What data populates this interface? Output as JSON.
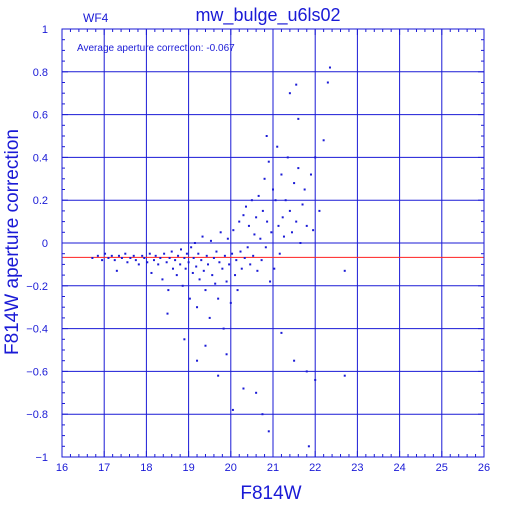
{
  "chart_data": {
    "type": "scatter",
    "title": "mw_bulge_u6ls02",
    "corner_label": "WF4",
    "annotation": "Average aperture correction: -0.067",
    "xlabel": "F814W",
    "ylabel": "F814W aperture correction",
    "xlim": [
      16,
      26
    ],
    "ylim": [
      -1,
      1
    ],
    "x_ticks": [
      16,
      17,
      18,
      19,
      20,
      21,
      22,
      23,
      24,
      25,
      26
    ],
    "y_ticks": [
      -1,
      -0.8,
      -0.6,
      -0.4,
      -0.2,
      0,
      0.2,
      0.4,
      0.6,
      0.8,
      1
    ],
    "x_tick_labels": [
      "16",
      "17",
      "18",
      "19",
      "20",
      "21",
      "22",
      "23",
      "24",
      "25",
      "26"
    ],
    "y_tick_labels": [
      "−1",
      "−0.8",
      "−0.6",
      "−0.4",
      "−0.2",
      "0",
      "0.2",
      "0.4",
      "0.6",
      "0.8",
      "1"
    ],
    "grid": true,
    "reference_line": {
      "y": -0.067,
      "color": "#ff2020"
    },
    "colors": {
      "axis": "#1a1ad6",
      "points": "#1a1ad6",
      "grid": "#1a1ad6"
    },
    "points": [
      [
        16.72,
        -0.07
      ],
      [
        16.85,
        -0.06
      ],
      [
        16.95,
        -0.08
      ],
      [
        17.02,
        -0.05
      ],
      [
        17.1,
        -0.07
      ],
      [
        17.18,
        -0.06
      ],
      [
        17.25,
        -0.08
      ],
      [
        17.3,
        -0.13
      ],
      [
        17.35,
        -0.06
      ],
      [
        17.42,
        -0.07
      ],
      [
        17.5,
        -0.05
      ],
      [
        17.55,
        -0.09
      ],
      [
        17.62,
        -0.07
      ],
      [
        17.7,
        -0.06
      ],
      [
        17.75,
        -0.08
      ],
      [
        17.82,
        -0.1
      ],
      [
        17.9,
        -0.06
      ],
      [
        17.95,
        -0.07
      ],
      [
        18.02,
        -0.09
      ],
      [
        18.08,
        -0.05
      ],
      [
        18.12,
        -0.14
      ],
      [
        18.18,
        -0.08
      ],
      [
        18.22,
        -0.06
      ],
      [
        18.28,
        -0.1
      ],
      [
        18.33,
        -0.07
      ],
      [
        18.38,
        -0.17
      ],
      [
        18.42,
        -0.05
      ],
      [
        18.48,
        -0.09
      ],
      [
        18.52,
        -0.22
      ],
      [
        18.55,
        -0.07
      ],
      [
        18.6,
        -0.04
      ],
      [
        18.63,
        -0.12
      ],
      [
        18.68,
        -0.08
      ],
      [
        18.72,
        -0.15
      ],
      [
        18.75,
        -0.06
      ],
      [
        18.8,
        -0.1
      ],
      [
        18.82,
        -0.03
      ],
      [
        18.86,
        -0.2
      ],
      [
        18.9,
        -0.07
      ],
      [
        18.93,
        -0.12
      ],
      [
        18.96,
        -0.05
      ],
      [
        19.0,
        -0.09
      ],
      [
        19.03,
        -0.26
      ],
      [
        19.06,
        -0.02
      ],
      [
        19.1,
        -0.14
      ],
      [
        19.12,
        -0.07
      ],
      [
        19.15,
        0.0
      ],
      [
        19.18,
        -0.11
      ],
      [
        19.2,
        -0.3
      ],
      [
        19.23,
        -0.05
      ],
      [
        19.26,
        -0.17
      ],
      [
        19.3,
        -0.08
      ],
      [
        19.33,
        0.03
      ],
      [
        19.36,
        -0.13
      ],
      [
        19.4,
        -0.22
      ],
      [
        19.43,
        -0.06
      ],
      [
        19.46,
        -0.1
      ],
      [
        19.5,
        -0.35
      ],
      [
        19.53,
        0.01
      ],
      [
        19.56,
        -0.15
      ],
      [
        19.6,
        -0.07
      ],
      [
        19.63,
        -0.19
      ],
      [
        19.66,
        -0.04
      ],
      [
        19.7,
        -0.26
      ],
      [
        19.73,
        -0.09
      ],
      [
        19.76,
        0.05
      ],
      [
        19.8,
        -0.12
      ],
      [
        19.83,
        -0.4
      ],
      [
        19.86,
        -0.06
      ],
      [
        19.9,
        -0.18
      ],
      [
        19.93,
        0.02
      ],
      [
        19.96,
        -0.1
      ],
      [
        20.0,
        -0.28
      ],
      [
        20.03,
        -0.05
      ],
      [
        20.06,
        0.06
      ],
      [
        20.1,
        -0.15
      ],
      [
        20.13,
        -0.08
      ],
      [
        20.16,
        -0.22
      ],
      [
        20.2,
        0.1
      ],
      [
        20.23,
        -0.04
      ],
      [
        20.26,
        -0.12
      ],
      [
        20.3,
        0.13
      ],
      [
        20.33,
        -0.07
      ],
      [
        20.36,
        0.17
      ],
      [
        20.4,
        -0.02
      ],
      [
        20.43,
        0.08
      ],
      [
        20.46,
        -0.1
      ],
      [
        20.5,
        0.2
      ],
      [
        20.53,
        -0.06
      ],
      [
        20.56,
        0.04
      ],
      [
        20.6,
        0.12
      ],
      [
        20.63,
        -0.13
      ],
      [
        20.66,
        0.22
      ],
      [
        20.7,
        0.02
      ],
      [
        20.73,
        -0.08
      ],
      [
        20.76,
        0.15
      ],
      [
        20.8,
        0.3
      ],
      [
        20.83,
        -0.02
      ],
      [
        20.86,
        0.1
      ],
      [
        20.9,
        0.38
      ],
      [
        20.93,
        -0.18
      ],
      [
        20.96,
        0.05
      ],
      [
        21.0,
        0.25
      ],
      [
        21.03,
        -0.12
      ],
      [
        21.06,
        0.2
      ],
      [
        21.1,
        0.45
      ],
      [
        21.13,
        0.08
      ],
      [
        21.16,
        -0.05
      ],
      [
        21.2,
        0.32
      ],
      [
        21.23,
        0.12
      ],
      [
        21.26,
        0.03
      ],
      [
        21.3,
        0.2
      ],
      [
        21.35,
        0.4
      ],
      [
        21.4,
        0.15
      ],
      [
        21.45,
        0.05
      ],
      [
        21.5,
        0.28
      ],
      [
        21.55,
        0.1
      ],
      [
        21.6,
        0.35
      ],
      [
        21.65,
        0.0
      ],
      [
        21.7,
        0.18
      ],
      [
        21.75,
        0.25
      ],
      [
        21.8,
        0.08
      ],
      [
        21.9,
        0.32
      ],
      [
        22.0,
        0.4
      ],
      [
        22.1,
        0.15
      ],
      [
        18.5,
        -0.33
      ],
      [
        18.9,
        -0.45
      ],
      [
        19.2,
        -0.55
      ],
      [
        19.4,
        -0.48
      ],
      [
        19.7,
        -0.62
      ],
      [
        19.9,
        -0.52
      ],
      [
        20.05,
        -0.78
      ],
      [
        20.3,
        -0.68
      ],
      [
        20.6,
        -0.7
      ],
      [
        20.75,
        -0.8
      ],
      [
        20.9,
        -0.88
      ],
      [
        21.2,
        -0.42
      ],
      [
        21.5,
        -0.55
      ],
      [
        21.8,
        -0.6
      ],
      [
        22.0,
        -0.64
      ],
      [
        22.7,
        -0.62
      ],
      [
        21.85,
        -0.95
      ],
      [
        21.4,
        0.7
      ],
      [
        21.55,
        0.74
      ],
      [
        22.3,
        0.75
      ],
      [
        22.35,
        0.82
      ],
      [
        22.2,
        0.48
      ],
      [
        21.6,
        0.58
      ],
      [
        22.7,
        -0.13
      ],
      [
        21.95,
        0.06
      ],
      [
        20.85,
        0.5
      ]
    ]
  }
}
